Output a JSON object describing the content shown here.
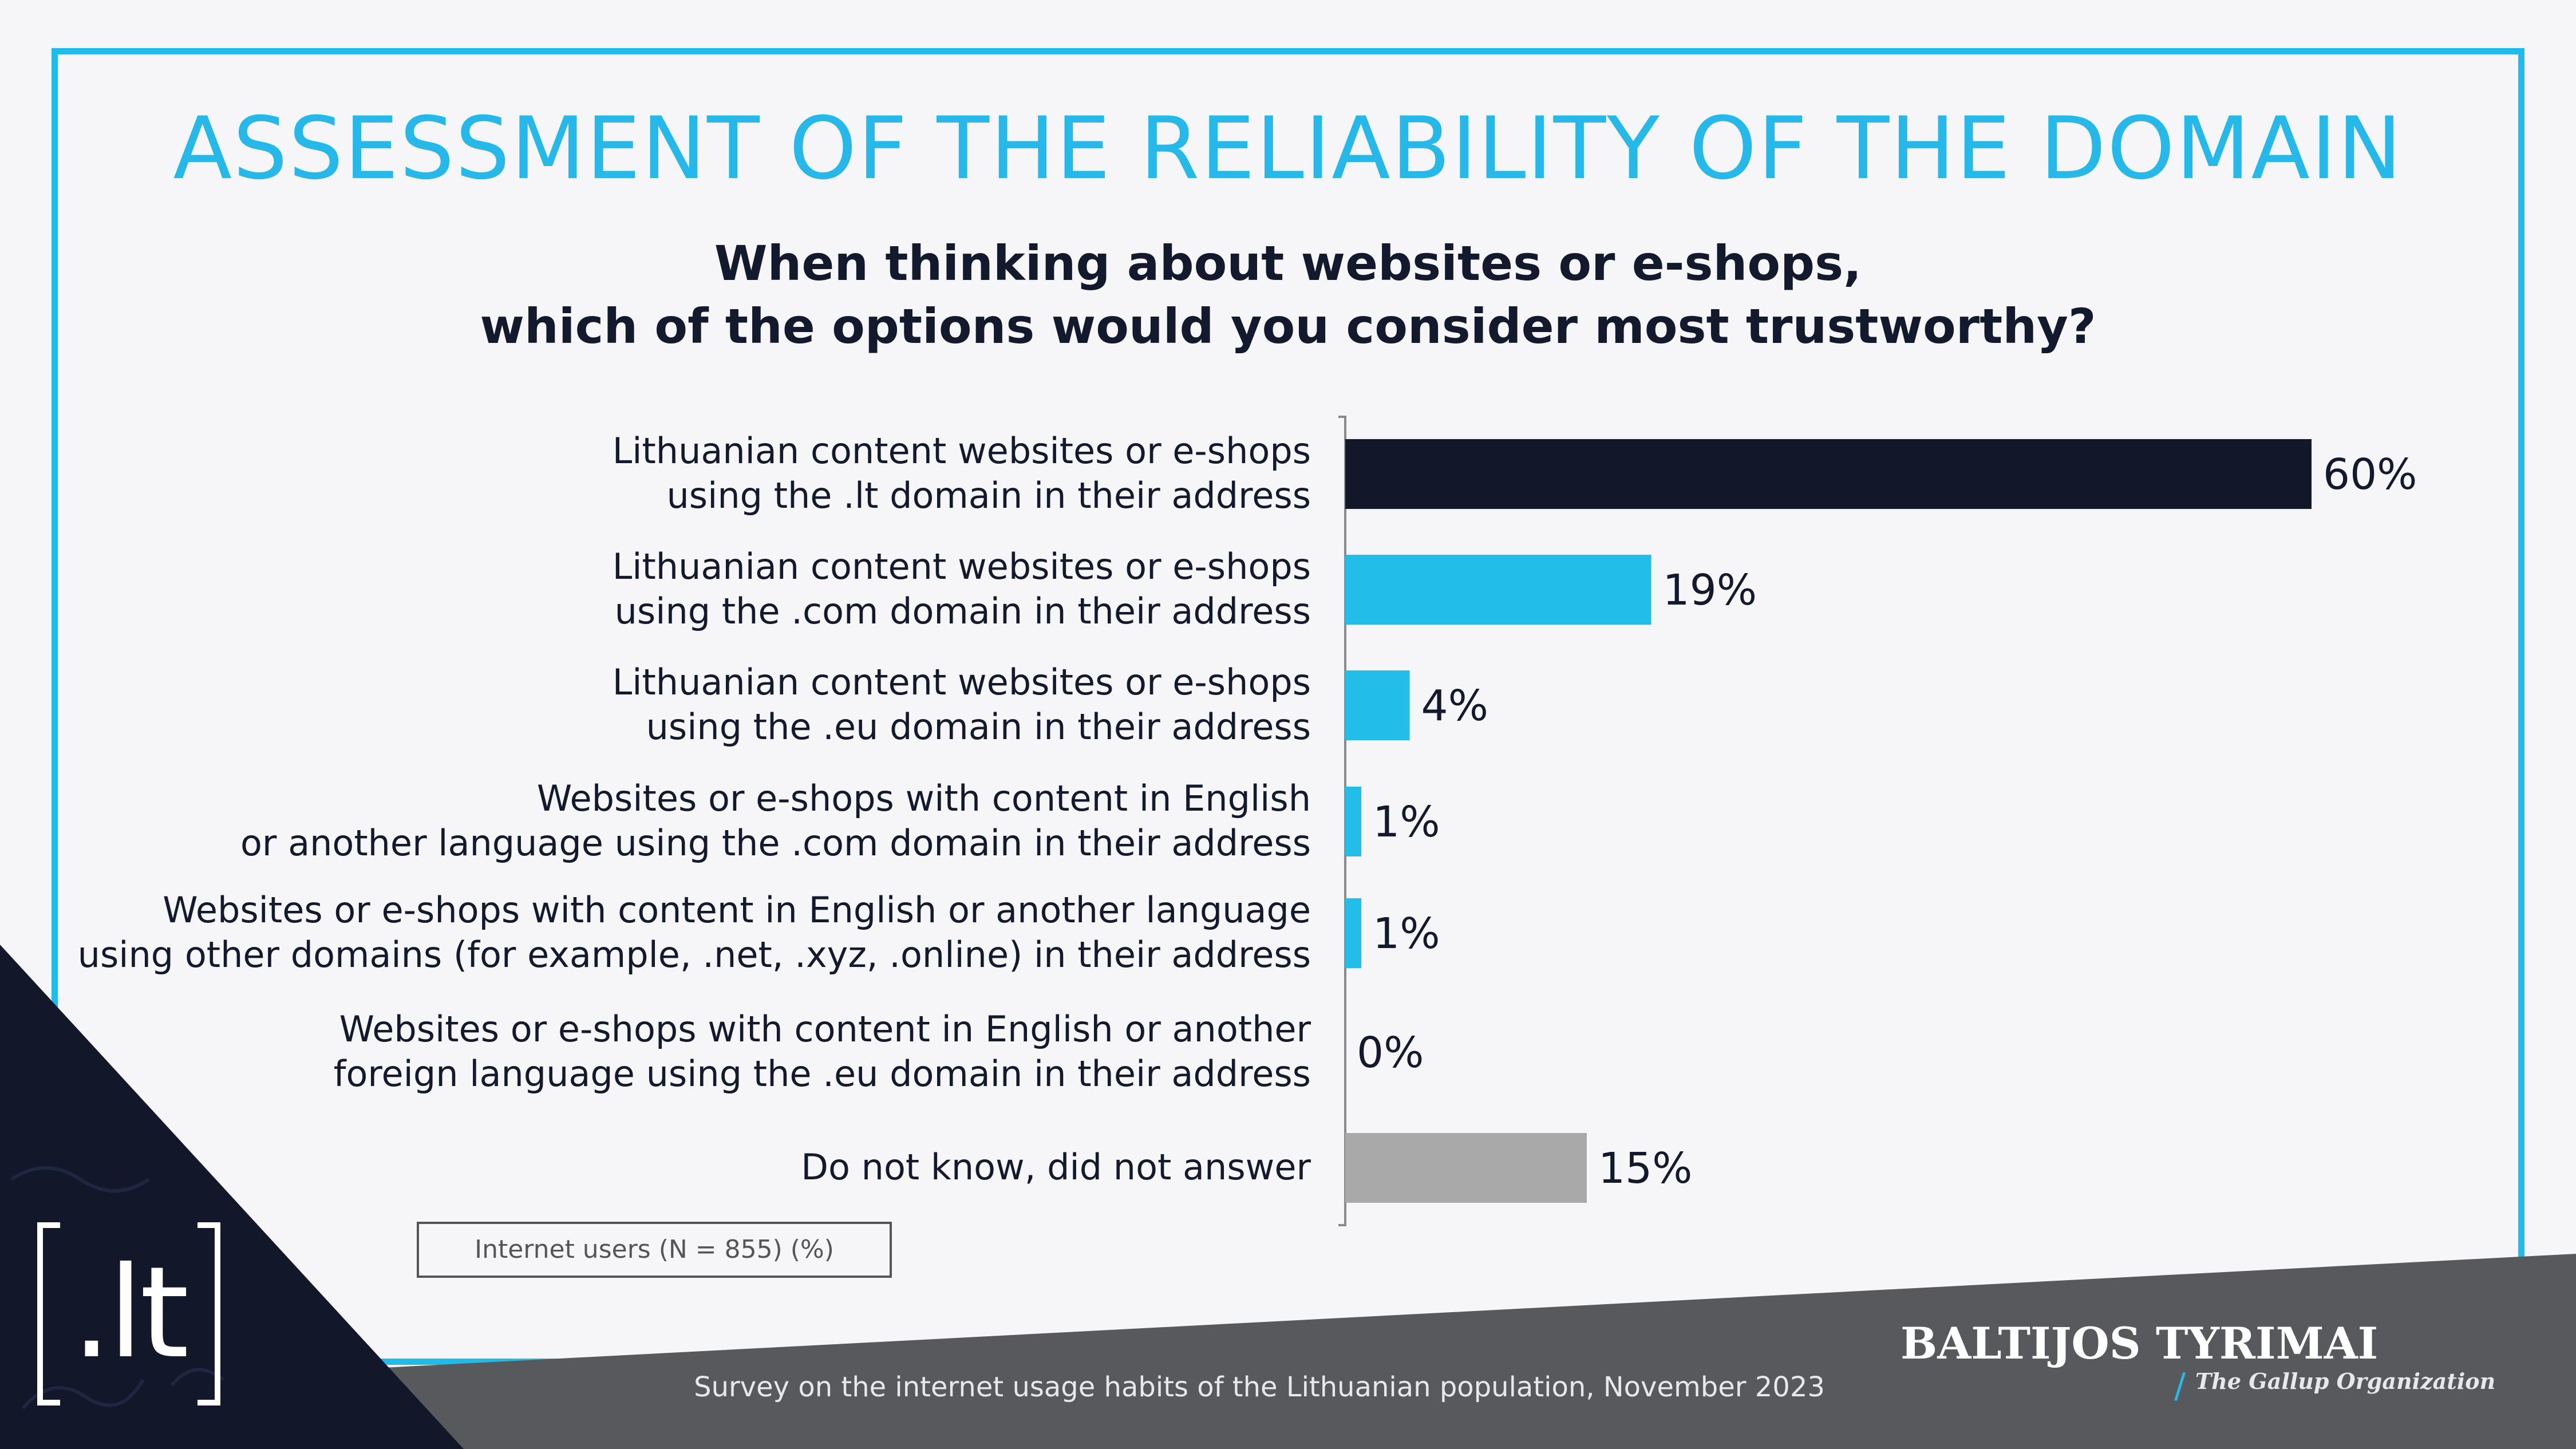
{
  "title": "ASSESSMENT OF THE RELIABILITY OF THE DOMAIN",
  "question": {
    "line1": "When thinking about websites or e-shops,",
    "line2": "which of the options would you consider most trustworthy?"
  },
  "chart_data": {
    "type": "bar",
    "orientation": "horizontal",
    "title": "ASSESSMENT OF THE RELIABILITY OF THE DOMAIN",
    "xlabel": "",
    "ylabel": "",
    "unit": "%",
    "xlim": [
      0,
      60
    ],
    "grid": false,
    "categories": [
      [
        "Lithuanian content websites or e-shops",
        "using the .lt domain in their address"
      ],
      [
        "Lithuanian content websites or e-shops",
        "using the .com domain in their address"
      ],
      [
        "Lithuanian content websites or e-shops",
        "using the .eu domain in their address"
      ],
      [
        "Websites or e-shops with content in English",
        "or another language using the .com domain in their address"
      ],
      [
        "Websites or e-shops with content in English or another language",
        "using other domains (for example, .net, .xyz, .online) in their address"
      ],
      [
        "Websites or e-shops with content in English or another",
        "foreign language using the .eu domain in their address"
      ],
      [
        "Do not know, did not answer"
      ]
    ],
    "values": [
      60,
      19,
      4,
      1,
      1,
      0,
      15
    ],
    "value_labels": [
      "60%",
      "19%",
      "4%",
      "1%",
      "1%",
      "0%",
      "15%"
    ],
    "colors": [
      "#121729",
      "#23bde9",
      "#23bde9",
      "#23bde9",
      "#23bde9",
      "#23bde9",
      "#a9a9a9"
    ]
  },
  "legend": {
    "text": "Internet users (N = 855) (%)"
  },
  "footer": {
    "survey": "Survey on the internet usage habits of the Lithuanian population, November 2023",
    "brand": "BALTIJOS TYRIMAI",
    "brand_sub": "The Gallup Organization",
    "logo": ".lt"
  },
  "colors": {
    "accent": "#26b8e8",
    "dark": "#121729",
    "band": "#58595d"
  }
}
